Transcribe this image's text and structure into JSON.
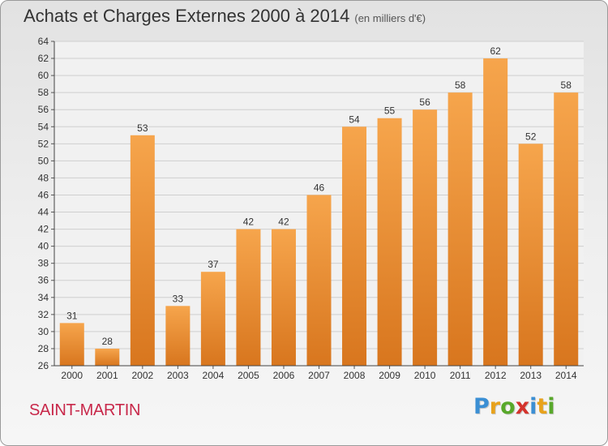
{
  "title": "Achats et Charges Externes 2000 à 2014",
  "unit": "(en milliers d'€)",
  "commune": "SAINT-MARTIN",
  "logo": {
    "letters": [
      "P",
      "r",
      "o",
      "x",
      "i",
      "t",
      "i"
    ],
    "colors": [
      "#3b8fd4",
      "#e8a21c",
      "#58a82a",
      "#d4332c",
      "#3b8fd4",
      "#e8a21c",
      "#58a82a"
    ]
  },
  "colors": {
    "bar_top": "#f6a54c",
    "bar_bottom": "#d8761e",
    "title": "#333333",
    "commune": "#c8284a"
  },
  "chart_data": {
    "type": "bar",
    "categories": [
      "2000",
      "2001",
      "2002",
      "2003",
      "2004",
      "2005",
      "2006",
      "2007",
      "2008",
      "2009",
      "2010",
      "2011",
      "2012",
      "2013",
      "2014"
    ],
    "values": [
      31,
      28,
      53,
      33,
      37,
      42,
      42,
      46,
      54,
      55,
      56,
      58,
      62,
      52,
      58
    ],
    "ylim": [
      26,
      64
    ],
    "yticks": [
      26,
      28,
      30,
      32,
      34,
      36,
      38,
      40,
      42,
      44,
      46,
      48,
      50,
      52,
      54,
      56,
      58,
      60,
      62,
      64
    ],
    "grid": true,
    "data_labels": true
  }
}
